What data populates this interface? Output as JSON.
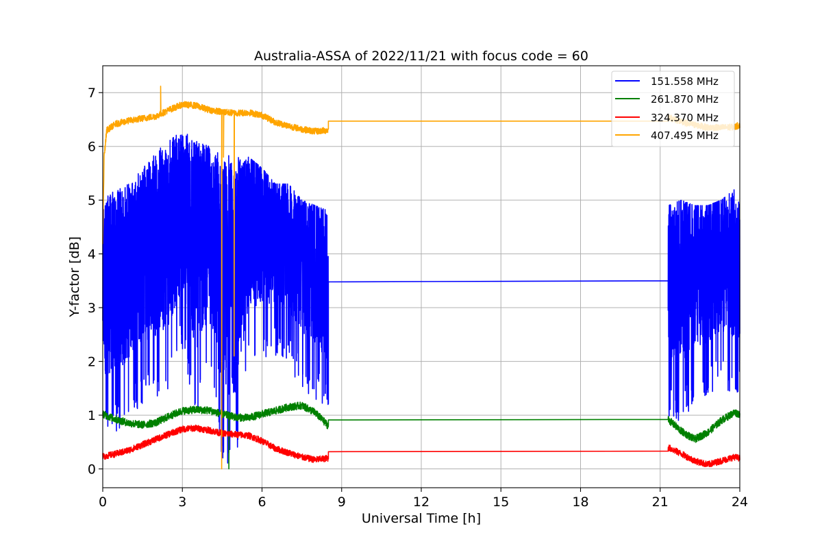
{
  "chart_data": {
    "type": "line",
    "title": "Australia-ASSA of 2022/11/21 with focus code = 60",
    "xlabel": "Universal Time [h]",
    "ylabel": "Y-factor [dB]",
    "xlim": [
      0,
      24
    ],
    "ylim": [
      -0.35,
      7.5
    ],
    "xticks": [
      0,
      3,
      6,
      9,
      12,
      15,
      18,
      21,
      24
    ],
    "xtick_labels": [
      "0",
      "3",
      "6",
      "9",
      "12",
      "15",
      "18",
      "21",
      "24"
    ],
    "yticks": [
      0,
      1,
      2,
      3,
      4,
      5,
      6,
      7
    ],
    "ytick_labels": [
      "0",
      "1",
      "2",
      "3",
      "4",
      "5",
      "6",
      "7"
    ],
    "grid": true,
    "legend_position": "top-right",
    "series": [
      {
        "name": "151.558 MHz",
        "color": "#0000ff",
        "style": "noisy",
        "segments": [
          {
            "x": [
              0.0,
              0.5,
              1.0,
              1.5,
              2.0,
              2.5,
              3.0,
              3.5,
              4.0,
              4.5,
              5.0,
              5.5,
              6.0,
              6.5,
              7.0,
              7.5,
              8.0,
              8.5
            ],
            "y_high": [
              5.0,
              5.2,
              5.3,
              5.6,
              5.9,
              6.1,
              6.3,
              6.1,
              6.0,
              5.9,
              5.8,
              5.8,
              5.6,
              5.3,
              5.3,
              5.0,
              4.9,
              4.8
            ],
            "y_low": [
              0.6,
              0.6,
              0.9,
              1.2,
              1.3,
              1.5,
              2.2,
              0.9,
              1.7,
              0.05,
              0.05,
              1.9,
              2.0,
              2.1,
              1.9,
              1.5,
              1.3,
              0.9
            ]
          },
          {
            "x": [
              8.5,
              21.3
            ],
            "y": [
              3.48,
              3.5
            ]
          },
          {
            "x": [
              21.3,
              21.8,
              22.3,
              22.8,
              23.3,
              23.8,
              24.0
            ],
            "y_high": [
              4.9,
              5.0,
              4.9,
              4.9,
              5.0,
              5.2,
              4.9
            ],
            "y_low": [
              0.9,
              0.9,
              1.1,
              1.3,
              1.5,
              1.3,
              1.4
            ]
          }
        ]
      },
      {
        "name": "261.870 MHz",
        "color": "#008000",
        "style": "noisy",
        "segments": [
          {
            "x": [
              0.0,
              0.5,
              1.0,
              1.5,
              2.0,
              2.5,
              3.0,
              3.5,
              4.0,
              4.5,
              5.0,
              5.5,
              6.0,
              6.5,
              7.0,
              7.5,
              8.0,
              8.5
            ],
            "y_mid": [
              1.02,
              0.92,
              0.85,
              0.82,
              0.86,
              0.98,
              1.08,
              1.1,
              1.09,
              1.02,
              0.96,
              0.95,
              1.02,
              1.08,
              1.15,
              1.18,
              1.05,
              0.8
            ],
            "amp": 0.07
          },
          {
            "x": [
              8.5,
              21.3
            ],
            "y": [
              0.91,
              0.92
            ]
          },
          {
            "x": [
              21.3,
              21.8,
              22.3,
              22.8,
              23.3,
              23.8,
              24.0
            ],
            "y_mid": [
              0.92,
              0.7,
              0.55,
              0.68,
              0.9,
              1.05,
              1.02
            ],
            "amp": 0.07
          }
        ],
        "spikes": [
          {
            "x": 4.75,
            "y": 0.0
          }
        ]
      },
      {
        "name": "324.370 MHz",
        "color": "#ff0000",
        "style": "noisy",
        "segments": [
          {
            "x": [
              0.0,
              0.5,
              1.0,
              1.5,
              2.0,
              2.5,
              3.0,
              3.5,
              4.0,
              4.5,
              5.0,
              5.5,
              6.0,
              6.5,
              7.0,
              7.5,
              8.0,
              8.5
            ],
            "y_mid": [
              0.23,
              0.28,
              0.35,
              0.45,
              0.55,
              0.65,
              0.74,
              0.76,
              0.72,
              0.66,
              0.64,
              0.62,
              0.52,
              0.38,
              0.3,
              0.22,
              0.17,
              0.2
            ],
            "amp": 0.06
          },
          {
            "x": [
              8.5,
              21.3
            ],
            "y": [
              0.32,
              0.33
            ]
          },
          {
            "x": [
              21.3,
              21.8,
              22.3,
              22.8,
              23.3,
              23.8,
              24.0
            ],
            "y_mid": [
              0.4,
              0.28,
              0.15,
              0.08,
              0.15,
              0.22,
              0.2
            ],
            "amp": 0.06
          }
        ]
      },
      {
        "name": "407.495 MHz",
        "color": "#ffa500",
        "style": "noisy",
        "segments": [
          {
            "x": [
              0.0,
              0.05,
              0.15,
              0.5,
              1.0,
              1.5,
              2.0,
              2.5,
              3.0,
              3.5,
              4.0,
              4.5,
              5.0,
              5.5,
              6.0,
              6.5,
              7.0,
              7.5,
              8.0,
              8.5
            ],
            "y_mid": [
              4.2,
              5.8,
              6.3,
              6.42,
              6.48,
              6.52,
              6.56,
              6.68,
              6.78,
              6.76,
              6.68,
              6.64,
              6.62,
              6.63,
              6.58,
              6.45,
              6.38,
              6.32,
              6.28,
              6.3
            ],
            "amp": 0.06
          },
          {
            "x": [
              8.5,
              21.3
            ],
            "y": [
              6.47,
              6.47
            ]
          },
          {
            "x": [
              21.3,
              21.8,
              22.3,
              22.8,
              23.3,
              23.8,
              24.0
            ],
            "y_mid": [
              6.55,
              6.45,
              6.4,
              6.35,
              6.35,
              6.36,
              6.4
            ],
            "amp": 0.06
          }
        ],
        "spikes": [
          {
            "x": 2.18,
            "y": 7.12
          },
          {
            "x": 4.48,
            "y": 0.0
          },
          {
            "x": 4.95,
            "y": 2.1
          },
          {
            "x": 4.55,
            "y": 5.8
          }
        ]
      }
    ]
  }
}
